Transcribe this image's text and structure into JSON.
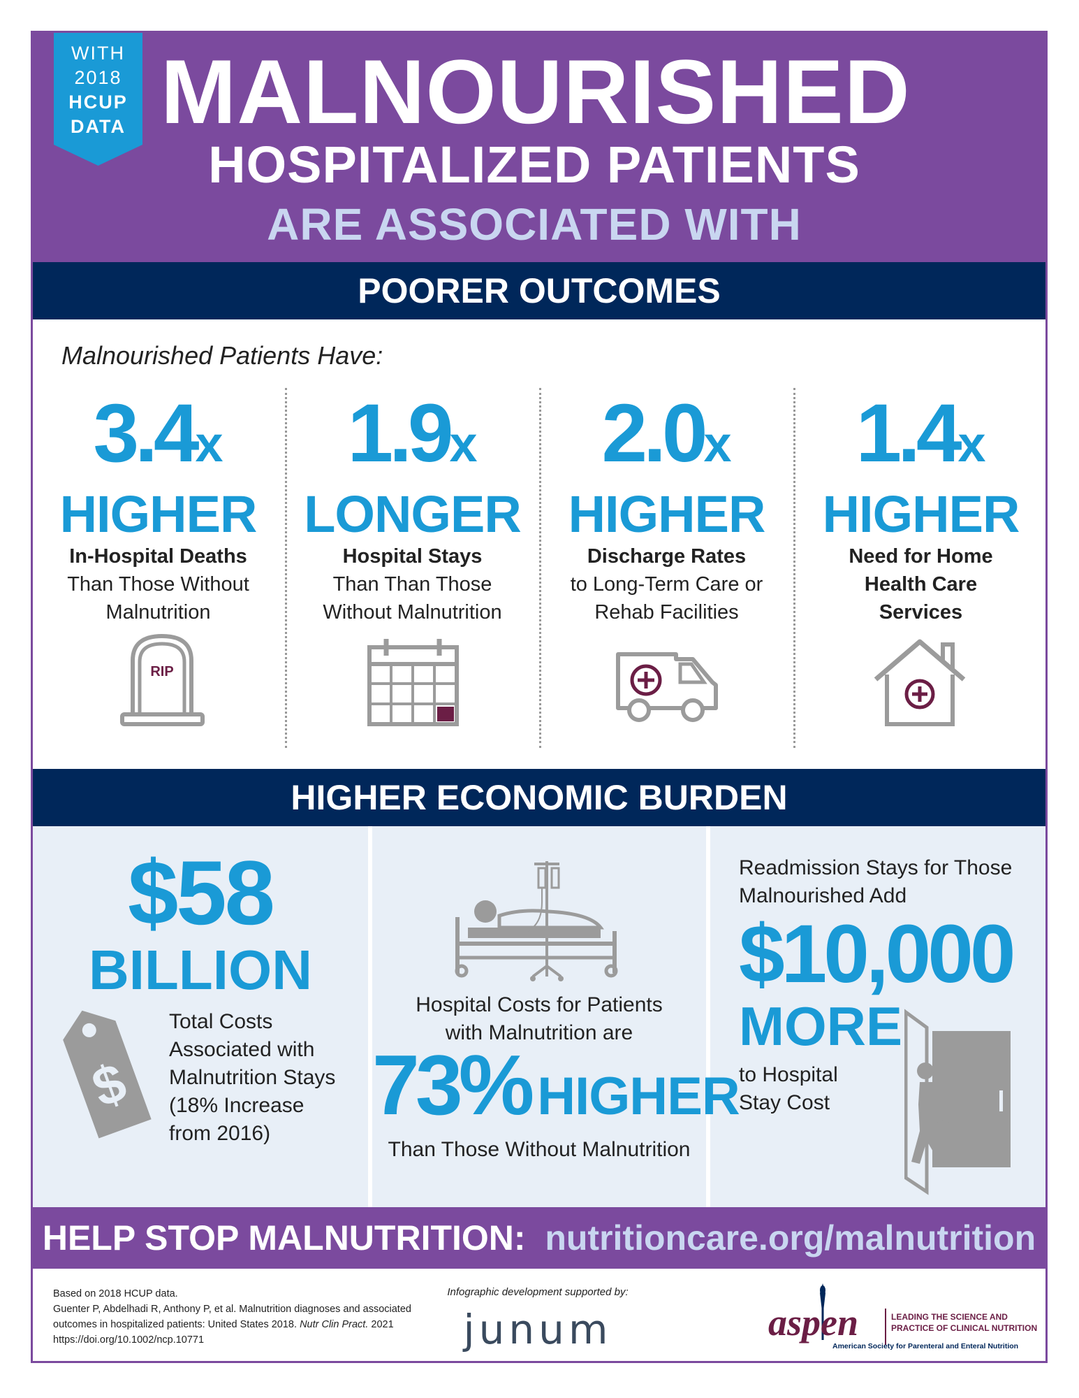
{
  "ribbon": {
    "line1": "WITH",
    "line2": "2018",
    "line3": "HCUP",
    "line4": "DATA"
  },
  "header": {
    "title": "MALNOURISHED",
    "subtitle": "HOSPITALIZED PATIENTS",
    "tagline": "ARE ASSOCIATED WITH"
  },
  "outcomes": {
    "heading": "POORER OUTCOMES",
    "intro": "Malnourished Patients Have:",
    "stats": [
      {
        "value": "3.4",
        "unit": "x",
        "word": "HIGHER",
        "bold": "In-Hospital Deaths",
        "line2": "Than Those Without",
        "line3": "Malnutrition",
        "icon": "tombstone-icon",
        "icon_text": "RIP"
      },
      {
        "value": "1.9",
        "unit": "x",
        "word": "LONGER",
        "bold": "Hospital Stays",
        "line2": "Than Than Those",
        "line3": "Without Malnutrition",
        "icon": "calendar-icon"
      },
      {
        "value": "2.0",
        "unit": "x",
        "word": "HIGHER",
        "bold": "Discharge Rates",
        "line2": "to Long-Term Care or",
        "line3": "Rehab Facilities",
        "icon": "ambulance-icon"
      },
      {
        "value": "1.4",
        "unit": "x",
        "word": "HIGHER",
        "bold1": "Need for Home",
        "bold2": "Health Care",
        "bold3": "Services",
        "icon": "home-health-icon"
      }
    ]
  },
  "economic": {
    "heading": "HIGHER ECONOMIC BURDEN",
    "total": {
      "amount": "$58",
      "unit": "BILLION",
      "l1": "Total Costs",
      "l2": "Associated with",
      "l3": "Malnutrition Stays",
      "l4": "(18% Increase",
      "l5": "from 2016)",
      "icon": "price-tag-icon"
    },
    "costs": {
      "l1": "Hospital Costs for Patients",
      "l2": "with Malnutrition are",
      "pct": "73%",
      "word": "HIGHER",
      "l3": "Than Those Without Malnutrition",
      "icon": "hospital-bed-icon"
    },
    "readmission": {
      "l1": "Readmission Stays for Those",
      "l2": "Malnourished Add",
      "amount": "$10,000",
      "word": "MORE",
      "l3": "to Hospital",
      "l4": "Stay Cost",
      "icon": "door-exit-icon"
    }
  },
  "cta": {
    "label": "HELP STOP MALNUTRITION:",
    "url": "nutritioncare.org/malnutrition"
  },
  "footer": {
    "c1": "Based on 2018 HCUP data.",
    "c2": "Guenter P, Abdelhadi R, Anthony P, et al. Malnutrition diagnoses and associated",
    "c3": "outcomes in hospitalized patients: United States 2018.",
    "c3_journal": "Nutr Clin Pract.",
    "c3_year": "2021",
    "c4": "https://doi.org/10.1002/ncp.10771",
    "support": "Infographic development supported by:",
    "junum": "junum",
    "aspen": "aspen",
    "aspen_tag1": "LEADING THE SCIENCE AND",
    "aspen_tag2": "PRACTICE OF CLINICAL NUTRITION",
    "aspen_full": "American Society for Parenteral and Enteral Nutrition"
  },
  "colors": {
    "purple": "#7b4a9e",
    "navy": "#00275a",
    "blue": "#1a9ad6",
    "light_blue": "#c9d6f0",
    "panel": "#e8eff7",
    "icon_gray": "#9b9b9b",
    "maroon": "#6b1e45"
  }
}
